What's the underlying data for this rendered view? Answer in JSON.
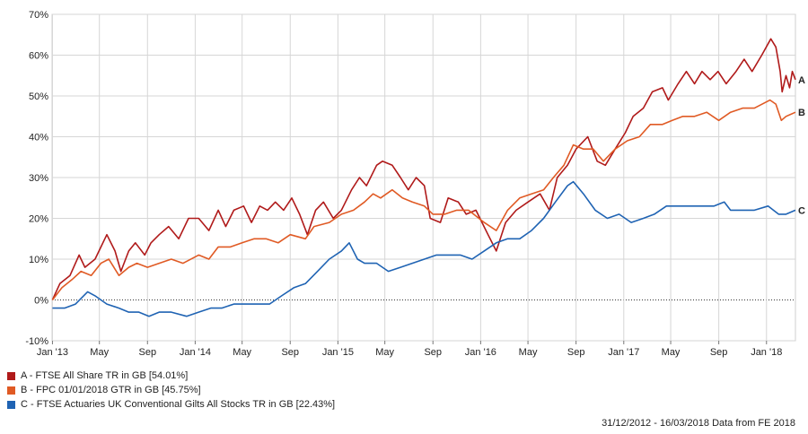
{
  "chart_data": {
    "type": "line",
    "ylim": [
      -10,
      70
    ],
    "y_ticks": [
      -10,
      0,
      10,
      20,
      30,
      40,
      50,
      60,
      70
    ],
    "y_tick_labels": [
      "-10%",
      "0%",
      "10%",
      "20%",
      "30%",
      "40%",
      "50%",
      "60%",
      "70%"
    ],
    "x_range": [
      "2012-12-31",
      "2018-03-16"
    ],
    "x_ticks": [
      "2013-01-01",
      "2013-05-01",
      "2013-09-01",
      "2014-01-01",
      "2014-05-01",
      "2014-09-01",
      "2015-01-01",
      "2015-05-01",
      "2015-09-01",
      "2016-01-01",
      "2016-05-01",
      "2016-09-01",
      "2017-01-01",
      "2017-05-01",
      "2017-09-01",
      "2018-01-01"
    ],
    "x_tick_labels": [
      "Jan '13",
      "May",
      "Sep",
      "Jan '14",
      "May",
      "Sep",
      "Jan '15",
      "May",
      "Sep",
      "Jan '16",
      "May",
      "Sep",
      "Jan '17",
      "May",
      "Sep",
      "Jan '18"
    ],
    "grid": true,
    "zero_line": "dotted",
    "series": [
      {
        "name": "A - FTSE All Share TR in GB [54.01%]",
        "end_label": "A",
        "color": "#b01a1a",
        "points": [
          [
            "2013-01-01",
            0
          ],
          [
            "2013-01-20",
            4
          ],
          [
            "2013-02-15",
            6
          ],
          [
            "2013-03-10",
            11
          ],
          [
            "2013-03-25",
            8
          ],
          [
            "2013-04-20",
            10
          ],
          [
            "2013-05-20",
            16
          ],
          [
            "2013-06-10",
            12
          ],
          [
            "2013-06-25",
            7
          ],
          [
            "2013-07-15",
            12
          ],
          [
            "2013-08-01",
            14
          ],
          [
            "2013-08-25",
            11
          ],
          [
            "2013-09-10",
            14
          ],
          [
            "2013-10-01",
            16
          ],
          [
            "2013-10-25",
            18
          ],
          [
            "2013-11-20",
            15
          ],
          [
            "2013-12-15",
            20
          ],
          [
            "2014-01-10",
            20
          ],
          [
            "2014-02-05",
            17
          ],
          [
            "2014-03-01",
            22
          ],
          [
            "2014-03-20",
            18
          ],
          [
            "2014-04-10",
            22
          ],
          [
            "2014-05-05",
            23
          ],
          [
            "2014-05-25",
            19
          ],
          [
            "2014-06-15",
            23
          ],
          [
            "2014-07-05",
            22
          ],
          [
            "2014-07-25",
            24
          ],
          [
            "2014-08-15",
            22
          ],
          [
            "2014-09-05",
            25
          ],
          [
            "2014-09-25",
            21
          ],
          [
            "2014-10-15",
            16
          ],
          [
            "2014-11-05",
            22
          ],
          [
            "2014-11-25",
            24
          ],
          [
            "2014-12-20",
            20
          ],
          [
            "2015-01-10",
            22
          ],
          [
            "2015-02-05",
            27
          ],
          [
            "2015-02-25",
            30
          ],
          [
            "2015-03-15",
            28
          ],
          [
            "2015-04-10",
            33
          ],
          [
            "2015-04-25",
            34
          ],
          [
            "2015-05-20",
            33
          ],
          [
            "2015-06-10",
            30
          ],
          [
            "2015-06-30",
            27
          ],
          [
            "2015-07-20",
            30
          ],
          [
            "2015-08-10",
            28
          ],
          [
            "2015-08-25",
            20
          ],
          [
            "2015-09-20",
            19
          ],
          [
            "2015-10-10",
            25
          ],
          [
            "2015-11-05",
            24
          ],
          [
            "2015-11-25",
            21
          ],
          [
            "2015-12-20",
            22
          ],
          [
            "2016-01-20",
            16
          ],
          [
            "2016-02-10",
            12
          ],
          [
            "2016-03-05",
            19
          ],
          [
            "2016-04-01",
            22
          ],
          [
            "2016-05-01",
            24
          ],
          [
            "2016-06-01",
            26
          ],
          [
            "2016-06-25",
            22
          ],
          [
            "2016-07-15",
            30
          ],
          [
            "2016-08-10",
            33
          ],
          [
            "2016-09-01",
            37
          ],
          [
            "2016-10-01",
            40
          ],
          [
            "2016-10-25",
            34
          ],
          [
            "2016-11-15",
            33
          ],
          [
            "2016-12-10",
            37
          ],
          [
            "2017-01-05",
            41
          ],
          [
            "2017-01-25",
            45
          ],
          [
            "2017-02-20",
            47
          ],
          [
            "2017-03-15",
            51
          ],
          [
            "2017-04-10",
            52
          ],
          [
            "2017-04-25",
            49
          ],
          [
            "2017-05-20",
            53
          ],
          [
            "2017-06-10",
            56
          ],
          [
            "2017-07-01",
            53
          ],
          [
            "2017-07-20",
            56
          ],
          [
            "2017-08-10",
            54
          ],
          [
            "2017-08-30",
            56
          ],
          [
            "2017-09-20",
            53
          ],
          [
            "2017-10-15",
            56
          ],
          [
            "2017-11-05",
            59
          ],
          [
            "2017-11-25",
            56
          ],
          [
            "2017-12-20",
            60
          ],
          [
            "2018-01-12",
            64
          ],
          [
            "2018-01-25",
            62
          ],
          [
            "2018-02-05",
            56
          ],
          [
            "2018-02-10",
            51
          ],
          [
            "2018-02-20",
            55
          ],
          [
            "2018-03-01",
            52
          ],
          [
            "2018-03-08",
            56
          ],
          [
            "2018-03-16",
            54
          ]
        ]
      },
      {
        "name": "B - FPC 01/01/2018 GTR in GB [45.75%]",
        "end_label": "B",
        "color": "#e05a24",
        "points": [
          [
            "2013-01-01",
            0
          ],
          [
            "2013-01-25",
            3
          ],
          [
            "2013-02-20",
            5
          ],
          [
            "2013-03-15",
            7
          ],
          [
            "2013-04-10",
            6
          ],
          [
            "2013-05-05",
            9
          ],
          [
            "2013-05-25",
            10
          ],
          [
            "2013-06-20",
            6
          ],
          [
            "2013-07-15",
            8
          ],
          [
            "2013-08-05",
            9
          ],
          [
            "2013-09-01",
            8
          ],
          [
            "2013-10-01",
            9
          ],
          [
            "2013-11-01",
            10
          ],
          [
            "2013-12-01",
            9
          ],
          [
            "2014-01-10",
            11
          ],
          [
            "2014-02-05",
            10
          ],
          [
            "2014-03-01",
            13
          ],
          [
            "2014-04-01",
            13
          ],
          [
            "2014-05-01",
            14
          ],
          [
            "2014-06-01",
            15
          ],
          [
            "2014-07-01",
            15
          ],
          [
            "2014-08-01",
            14
          ],
          [
            "2014-09-01",
            16
          ],
          [
            "2014-10-10",
            15
          ],
          [
            "2014-11-01",
            18
          ],
          [
            "2014-12-10",
            19
          ],
          [
            "2015-01-10",
            21
          ],
          [
            "2015-02-10",
            22
          ],
          [
            "2015-03-10",
            24
          ],
          [
            "2015-04-01",
            26
          ],
          [
            "2015-04-20",
            25
          ],
          [
            "2015-05-20",
            27
          ],
          [
            "2015-06-15",
            25
          ],
          [
            "2015-07-10",
            24
          ],
          [
            "2015-08-10",
            23
          ],
          [
            "2015-09-01",
            21
          ],
          [
            "2015-10-01",
            21
          ],
          [
            "2015-11-01",
            22
          ],
          [
            "2015-12-01",
            22
          ],
          [
            "2016-01-10",
            19
          ],
          [
            "2016-02-10",
            17
          ],
          [
            "2016-03-10",
            22
          ],
          [
            "2016-04-10",
            25
          ],
          [
            "2016-05-10",
            26
          ],
          [
            "2016-06-10",
            27
          ],
          [
            "2016-07-05",
            30
          ],
          [
            "2016-08-01",
            33
          ],
          [
            "2016-08-25",
            38
          ],
          [
            "2016-09-20",
            37
          ],
          [
            "2016-10-15",
            37
          ],
          [
            "2016-11-10",
            34
          ],
          [
            "2016-12-10",
            37
          ],
          [
            "2017-01-10",
            39
          ],
          [
            "2017-02-10",
            40
          ],
          [
            "2017-03-10",
            43
          ],
          [
            "2017-04-10",
            43
          ],
          [
            "2017-05-05",
            44
          ],
          [
            "2017-06-01",
            45
          ],
          [
            "2017-07-01",
            45
          ],
          [
            "2017-08-01",
            46
          ],
          [
            "2017-09-01",
            44
          ],
          [
            "2017-10-01",
            46
          ],
          [
            "2017-11-01",
            47
          ],
          [
            "2017-12-01",
            47
          ],
          [
            "2018-01-10",
            49
          ],
          [
            "2018-01-25",
            48
          ],
          [
            "2018-02-08",
            44
          ],
          [
            "2018-02-20",
            45
          ],
          [
            "2018-03-16",
            46
          ]
        ]
      },
      {
        "name": "C - FTSE Actuaries UK Conventional Gilts All Stocks TR in GB [22.43%]",
        "end_label": "C",
        "color": "#1f63b3",
        "points": [
          [
            "2013-01-01",
            -2
          ],
          [
            "2013-02-01",
            -2
          ],
          [
            "2013-03-01",
            -1
          ],
          [
            "2013-04-01",
            2
          ],
          [
            "2013-04-20",
            1
          ],
          [
            "2013-05-20",
            -1
          ],
          [
            "2013-06-20",
            -2
          ],
          [
            "2013-07-15",
            -3
          ],
          [
            "2013-08-10",
            -3
          ],
          [
            "2013-09-05",
            -4
          ],
          [
            "2013-10-01",
            -3
          ],
          [
            "2013-11-01",
            -3
          ],
          [
            "2013-12-10",
            -4
          ],
          [
            "2014-01-10",
            -3
          ],
          [
            "2014-02-10",
            -2
          ],
          [
            "2014-03-10",
            -2
          ],
          [
            "2014-04-10",
            -1
          ],
          [
            "2014-05-10",
            -1
          ],
          [
            "2014-06-10",
            -1
          ],
          [
            "2014-07-10",
            -1
          ],
          [
            "2014-08-10",
            1
          ],
          [
            "2014-09-10",
            3
          ],
          [
            "2014-10-10",
            4
          ],
          [
            "2014-11-10",
            7
          ],
          [
            "2014-12-10",
            10
          ],
          [
            "2015-01-10",
            12
          ],
          [
            "2015-01-30",
            14
          ],
          [
            "2015-02-20",
            10
          ],
          [
            "2015-03-10",
            9
          ],
          [
            "2015-04-10",
            9
          ],
          [
            "2015-05-10",
            7
          ],
          [
            "2015-06-10",
            8
          ],
          [
            "2015-07-10",
            9
          ],
          [
            "2015-08-10",
            10
          ],
          [
            "2015-09-10",
            11
          ],
          [
            "2015-10-10",
            11
          ],
          [
            "2015-11-10",
            11
          ],
          [
            "2015-12-10",
            10
          ],
          [
            "2016-01-10",
            12
          ],
          [
            "2016-02-10",
            14
          ],
          [
            "2016-03-10",
            15
          ],
          [
            "2016-04-10",
            15
          ],
          [
            "2016-05-10",
            17
          ],
          [
            "2016-06-10",
            20
          ],
          [
            "2016-07-10",
            24
          ],
          [
            "2016-08-10",
            28
          ],
          [
            "2016-08-25",
            29
          ],
          [
            "2016-09-20",
            26
          ],
          [
            "2016-10-20",
            22
          ],
          [
            "2016-11-20",
            20
          ],
          [
            "2016-12-20",
            21
          ],
          [
            "2017-01-20",
            19
          ],
          [
            "2017-02-20",
            20
          ],
          [
            "2017-03-20",
            21
          ],
          [
            "2017-04-20",
            23
          ],
          [
            "2017-05-20",
            23
          ],
          [
            "2017-06-20",
            23
          ],
          [
            "2017-07-20",
            23
          ],
          [
            "2017-08-20",
            23
          ],
          [
            "2017-09-15",
            24
          ],
          [
            "2017-10-01",
            22
          ],
          [
            "2017-11-01",
            22
          ],
          [
            "2017-12-01",
            22
          ],
          [
            "2018-01-05",
            23
          ],
          [
            "2018-02-01",
            21
          ],
          [
            "2018-02-20",
            21
          ],
          [
            "2018-03-16",
            22
          ]
        ]
      }
    ]
  },
  "footer_text": "31/12/2012 - 16/03/2018 Data from FE 2018"
}
